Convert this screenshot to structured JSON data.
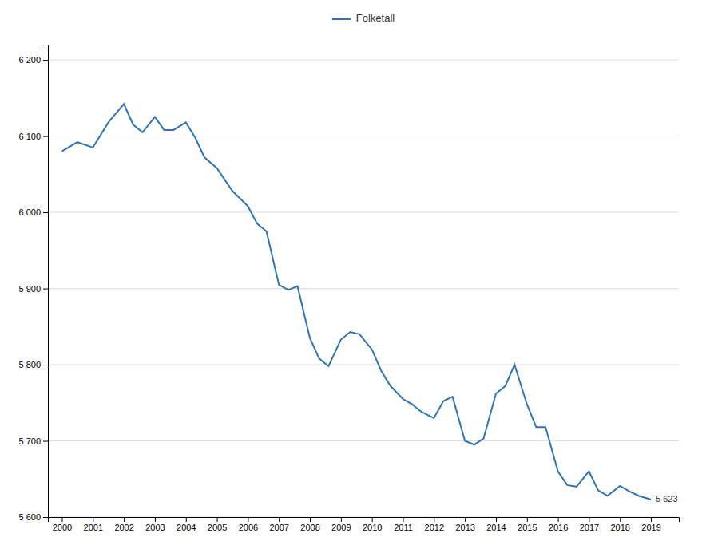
{
  "chart_data": {
    "type": "line",
    "x": [
      2000,
      2000.5,
      2001,
      2001.5,
      2002,
      2002.3,
      2002.6,
      2003,
      2003.3,
      2003.6,
      2004,
      2004.3,
      2004.6,
      2005,
      2005.5,
      2006,
      2006.3,
      2006.6,
      2007,
      2007.3,
      2007.6,
      2008,
      2008.3,
      2008.6,
      2009,
      2009.3,
      2009.6,
      2010,
      2010.3,
      2010.6,
      2011,
      2011.3,
      2011.6,
      2012,
      2012.3,
      2012.6,
      2013,
      2013.3,
      2013.6,
      2014,
      2014.3,
      2014.6,
      2015,
      2015.3,
      2015.6,
      2016,
      2016.3,
      2016.6,
      2017,
      2017.3,
      2017.6,
      2018,
      2018.3,
      2018.6,
      2019
    ],
    "series": [
      {
        "name": "Folketall",
        "color": "#2E75B6",
        "values": [
          6080,
          6092,
          6085,
          6118,
          6142,
          6115,
          6105,
          6125,
          6108,
          6108,
          6118,
          6098,
          6072,
          6058,
          6028,
          6008,
          5985,
          5975,
          5905,
          5898,
          5903,
          5835,
          5808,
          5798,
          5833,
          5843,
          5840,
          5820,
          5792,
          5772,
          5755,
          5748,
          5738,
          5730,
          5752,
          5758,
          5700,
          5695,
          5703,
          5762,
          5772,
          5800,
          5748,
          5718,
          5718,
          5660,
          5642,
          5640,
          5660,
          5635,
          5628,
          5641,
          5634,
          5628,
          5623
        ]
      }
    ],
    "xlim": [
      1999.55,
      2019.9
    ],
    "xticks": [
      2000,
      2001,
      2002,
      2003,
      2004,
      2005,
      2006,
      2007,
      2008,
      2009,
      2010,
      2011,
      2012,
      2013,
      2014,
      2015,
      2016,
      2017,
      2018,
      2019
    ],
    "ylim": [
      5600,
      6220
    ],
    "yticks": [
      {
        "value": 5600,
        "label": "5 600"
      },
      {
        "value": 5700,
        "label": "5 700"
      },
      {
        "value": 5800,
        "label": "5 800"
      },
      {
        "value": 5900,
        "label": "5 900"
      },
      {
        "value": 6000,
        "label": "6 000"
      },
      {
        "value": 6100,
        "label": "6 100"
      },
      {
        "value": 6200,
        "label": "6 200"
      }
    ],
    "grid": true,
    "legend": "top",
    "annotations": [
      {
        "x": 2019,
        "y": 5623,
        "text": "5 623"
      }
    ]
  }
}
